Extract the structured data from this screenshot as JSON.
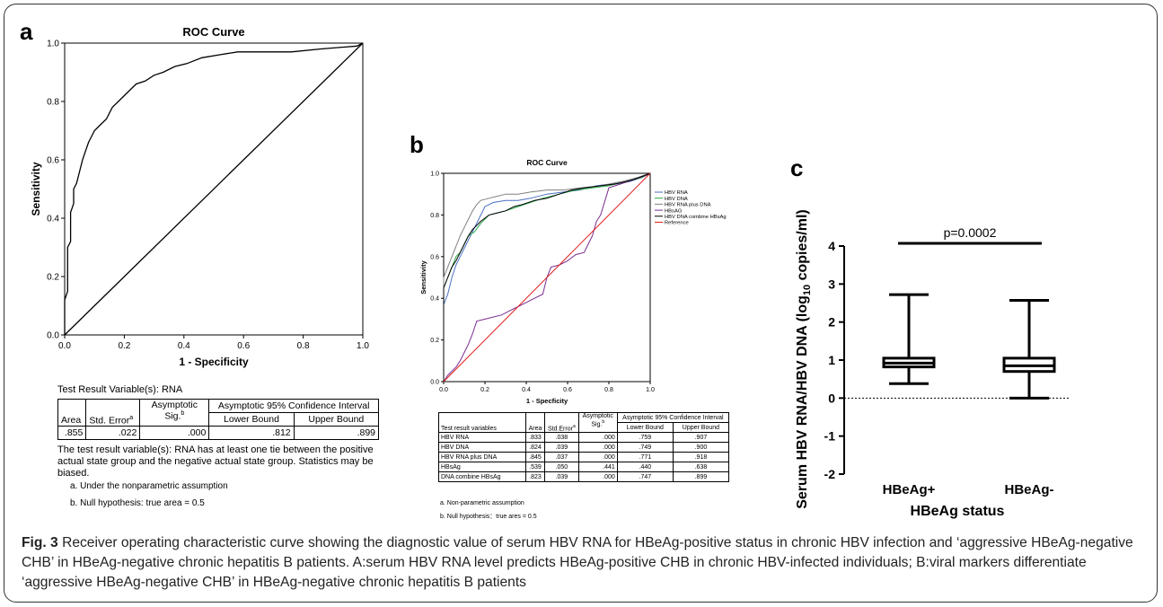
{
  "figure": {
    "caption_fig": "Fig. 3",
    "caption_text": " Receiver operating characteristic curve showing the diagnostic value of serum HBV RNA for HBeAg-positive status in chronic HBV infection and ‘aggressive HBeAg-negative CHB’ in HBeAg-negative chronic hepatitis B patients. A:serum HBV RNA level predicts HBeAg-positive CHB in chronic HBV-infected individuals; B:viral markers differentiate ‘aggressive HBeAg-negative CHB’ in HBeAg-negative chronic hepatitis B patients"
  },
  "panel_a": {
    "letter": "a",
    "table_title": "Test Result Variable(s):   RNA",
    "headers": {
      "area": "Area",
      "std_error": "Std. Error",
      "std_error_sup": "a",
      "asym_sig": "Asymptotic Sig.",
      "asym_sig_sup": "b",
      "ci": "Asymptotic 95% Confidence Interval",
      "lower": "Lower Bound",
      "upper": "Upper Bound"
    },
    "row": {
      "area": ".855",
      "std_error": ".022",
      "sig": ".000",
      "lower": ".812",
      "upper": ".899"
    },
    "note_tie": "The test result variable(s): RNA has at least one tie between the positive actual state group and the negative actual state group. Statistics may be biased.",
    "note_a": "a. Under the nonparametric assumption",
    "note_b": "b. Null hypothesis: true area = 0.5"
  },
  "panel_b": {
    "letter": "b",
    "headers": {
      "variables": "Test result variables",
      "area": "Area",
      "std_error": "Std.Error",
      "std_error_sup": "a",
      "asym_sig": "Asymptotic Sig.",
      "asym_sig_sup": "b",
      "ci": "Asymptotic 95% Confidence Interval",
      "lower": "Lower Bound",
      "upper": "Upper Bound"
    },
    "rows": [
      {
        "name": "HBV RNA",
        "area": ".833",
        "se": ".038",
        "sig": ".000",
        "lower": ".759",
        "upper": ".907"
      },
      {
        "name": "HBV DNA",
        "area": ".824",
        "se": ".039",
        "sig": ".000",
        "lower": ".749",
        "upper": ".900"
      },
      {
        "name": "HBV RNA plus DNA",
        "area": ".845",
        "se": ".037",
        "sig": ".000",
        "lower": ".771",
        "upper": ".918"
      },
      {
        "name": "HBsAg",
        "area": ".539",
        "se": ".050",
        "sig": ".441",
        "lower": ".440",
        "upper": ".638"
      },
      {
        "name": "DNA combine HBsAg",
        "area": ".823",
        "se": ".039",
        "sig": ".000",
        "lower": ".747",
        "upper": ".899"
      }
    ],
    "note_a": "a. Non-parametric assumption",
    "note_b": "b. Null hypothesis：true ares = 0.5"
  },
  "panel_c": {
    "letter": "c"
  },
  "chart_data": [
    {
      "type": "line",
      "title": "ROC Curve",
      "xlabel": "1 - Specificity",
      "ylabel": "Sensitivity",
      "xlim": [
        0,
        1
      ],
      "ylim": [
        0,
        1
      ],
      "x_ticks": [
        "0.0",
        "0.2",
        "0.4",
        "0.6",
        "0.8",
        "1.0"
      ],
      "y_ticks": [
        "0.0",
        "0.2",
        "0.4",
        "0.6",
        "0.8",
        "1.0"
      ],
      "colors": {
        "curve": "#000000",
        "reference": "#000000"
      },
      "series": [
        {
          "x": [
            0,
            0,
            0.01,
            0.01,
            0.02,
            0.02,
            0.03,
            0.03,
            0.04,
            0.05,
            0.06,
            0.07,
            0.08,
            0.09,
            0.1,
            0.12,
            0.14,
            0.16,
            0.18,
            0.2,
            0.22,
            0.24,
            0.27,
            0.3,
            0.33,
            0.37,
            0.41,
            0.46,
            0.52,
            0.58,
            0.66,
            0.76,
            0.86,
            0.98,
            1.0
          ],
          "y": [
            0,
            0.12,
            0.15,
            0.3,
            0.32,
            0.42,
            0.45,
            0.5,
            0.52,
            0.56,
            0.6,
            0.63,
            0.66,
            0.68,
            0.7,
            0.72,
            0.74,
            0.78,
            0.8,
            0.82,
            0.84,
            0.86,
            0.87,
            0.89,
            0.9,
            0.92,
            0.93,
            0.95,
            0.96,
            0.97,
            0.97,
            0.97,
            0.98,
            0.99,
            1.0
          ]
        },
        {
          "x": [
            0,
            1
          ],
          "y": [
            0,
            1
          ]
        }
      ]
    },
    {
      "type": "line",
      "title": "ROC Curve",
      "xlabel": "1 - Specficity",
      "ylabel": "Sensitivity",
      "xlim": [
        0,
        1
      ],
      "ylim": [
        0,
        1
      ],
      "x_ticks": [
        "0.0",
        "0.2",
        "0.4",
        "0.6",
        "0.8",
        "1.0"
      ],
      "y_ticks": [
        "0.0",
        "0.2",
        "0.4",
        "0.6",
        "0.8",
        "1.0"
      ],
      "legend": "top-right",
      "series": [
        {
          "name": "HBV RNA",
          "color": "#4a6fc4",
          "x": [
            0,
            0,
            0.02,
            0.04,
            0.06,
            0.08,
            0.1,
            0.12,
            0.14,
            0.16,
            0.18,
            0.2,
            0.24,
            0.3,
            0.36,
            0.42,
            0.5,
            0.58,
            0.66,
            0.74,
            0.82,
            0.9,
            0.96,
            1.0
          ],
          "y": [
            0,
            0.37,
            0.42,
            0.5,
            0.56,
            0.6,
            0.64,
            0.68,
            0.72,
            0.76,
            0.8,
            0.84,
            0.86,
            0.87,
            0.87,
            0.88,
            0.9,
            0.91,
            0.92,
            0.94,
            0.95,
            0.96,
            0.98,
            1.0
          ]
        },
        {
          "name": "HBV DNA",
          "color": "#2aa84a",
          "x": [
            0,
            0,
            0.02,
            0.04,
            0.06,
            0.08,
            0.1,
            0.12,
            0.15,
            0.18,
            0.22,
            0.26,
            0.3,
            0.36,
            0.42,
            0.48,
            0.56,
            0.64,
            0.72,
            0.8,
            0.88,
            0.96,
            1.0
          ],
          "y": [
            0,
            0.45,
            0.5,
            0.55,
            0.6,
            0.62,
            0.66,
            0.7,
            0.72,
            0.76,
            0.8,
            0.81,
            0.82,
            0.84,
            0.86,
            0.88,
            0.9,
            0.92,
            0.93,
            0.94,
            0.96,
            0.98,
            1.0
          ]
        },
        {
          "name": "HBV RNA plus DNA",
          "color": "#808080",
          "x": [
            0,
            0,
            0.02,
            0.04,
            0.06,
            0.08,
            0.1,
            0.12,
            0.14,
            0.16,
            0.18,
            0.22,
            0.26,
            0.3,
            0.36,
            0.42,
            0.5,
            0.58,
            0.66,
            0.76,
            0.86,
            0.94,
            1.0
          ],
          "y": [
            0,
            0.5,
            0.55,
            0.6,
            0.65,
            0.7,
            0.74,
            0.78,
            0.82,
            0.85,
            0.87,
            0.88,
            0.89,
            0.9,
            0.9,
            0.91,
            0.92,
            0.92,
            0.93,
            0.94,
            0.96,
            0.98,
            1.0
          ]
        },
        {
          "name": "HBsAG",
          "color": "#7b2d8e",
          "x": [
            0,
            0.02,
            0.04,
            0.06,
            0.08,
            0.1,
            0.12,
            0.14,
            0.16,
            0.2,
            0.24,
            0.28,
            0.32,
            0.36,
            0.4,
            0.44,
            0.48,
            0.5,
            0.52,
            0.56,
            0.6,
            0.64,
            0.68,
            0.7,
            0.72,
            0.74,
            0.76,
            0.8,
            0.86,
            0.92,
            0.98,
            1.0
          ],
          "y": [
            0,
            0.03,
            0.05,
            0.07,
            0.1,
            0.14,
            0.18,
            0.23,
            0.29,
            0.3,
            0.31,
            0.32,
            0.34,
            0.36,
            0.38,
            0.4,
            0.42,
            0.5,
            0.55,
            0.56,
            0.58,
            0.61,
            0.62,
            0.66,
            0.7,
            0.77,
            0.8,
            0.93,
            0.95,
            0.97,
            0.99,
            1.0
          ]
        },
        {
          "name": "HBV DNA combine HBsAg",
          "color": "#000000",
          "x": [
            0,
            0,
            0.02,
            0.04,
            0.06,
            0.08,
            0.1,
            0.12,
            0.14,
            0.16,
            0.18,
            0.22,
            0.26,
            0.3,
            0.34,
            0.38,
            0.44,
            0.5,
            0.56,
            0.62,
            0.68,
            0.76,
            0.84,
            0.92,
            1.0
          ],
          "y": [
            0,
            0.45,
            0.5,
            0.55,
            0.58,
            0.62,
            0.66,
            0.7,
            0.73,
            0.75,
            0.77,
            0.8,
            0.81,
            0.82,
            0.84,
            0.85,
            0.87,
            0.88,
            0.9,
            0.92,
            0.93,
            0.94,
            0.95,
            0.97,
            1.0
          ]
        },
        {
          "name": "Reference",
          "color": "#e02020",
          "x": [
            0,
            1
          ],
          "y": [
            0,
            1
          ]
        }
      ]
    },
    {
      "type": "box",
      "xlabel": "HBeAg status",
      "ylabel": "Serum HBV RNA/HBV DNA (log",
      "ylabel_sub": "10",
      "ylabel_end": " copies/ml)",
      "ylim": [
        -2,
        4
      ],
      "y_ticks": [
        "-2",
        "-1",
        "0",
        "1",
        "2",
        "3",
        "4"
      ],
      "categories": [
        "HBeAg+",
        "HBeAg-"
      ],
      "series": [
        {
          "name": "HBeAg+",
          "min": 0.38,
          "q1": 0.82,
          "median": 0.92,
          "q3": 1.05,
          "max": 2.72
        },
        {
          "name": "HBeAg-",
          "min": 0.0,
          "q1": 0.7,
          "median": 0.85,
          "q3": 1.05,
          "max": 2.57
        }
      ],
      "annotation": "p=0.0002",
      "reference_line_y": 0
    }
  ]
}
